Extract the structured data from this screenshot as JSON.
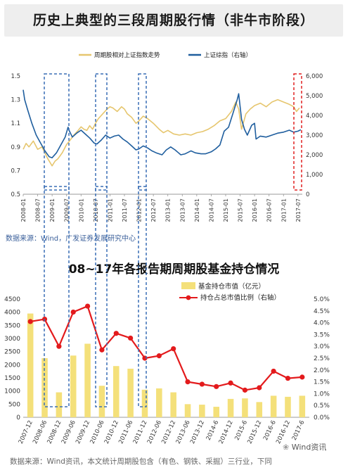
{
  "chart_data": [
    {
      "type": "line",
      "title": "历史上典型的三段周期股行情（非牛市阶段）",
      "source": "数据来源：Wind，广发证券发展研究中心",
      "x_ticks": [
        "2008-01",
        "2008-07",
        "2009-01",
        "2009-07",
        "2010-01",
        "2010-07",
        "2011-01",
        "2011-07",
        "2012-01",
        "2012-07",
        "2013-01",
        "2013-07",
        "2014-01",
        "2014-07",
        "2015-01",
        "2015-07",
        "2016-01",
        "2016-07",
        "2017-01",
        "2017-07"
      ],
      "y_left_ticks": [
        "1.5",
        "1.3",
        "1.1",
        "0.9",
        "0.7",
        "0.5"
      ],
      "y_right_ticks": [
        "6,000",
        "5,000",
        "4,000",
        "3,000",
        "2,000",
        "1,000",
        "0"
      ],
      "ylim_left": [
        0.5,
        1.5
      ],
      "ylim_right": [
        0,
        6000
      ],
      "legend_position": "top",
      "series": [
        {
          "name": "周期股相对上证指数走势",
          "color": "#e6c66e",
          "axis": "left",
          "points": [
            [
              2008.0,
              0.88
            ],
            [
              2008.1,
              0.93
            ],
            [
              2008.2,
              0.9
            ],
            [
              2008.35,
              0.95
            ],
            [
              2008.5,
              0.88
            ],
            [
              2008.65,
              0.9
            ],
            [
              2008.85,
              0.8
            ],
            [
              2009.0,
              0.74
            ],
            [
              2009.1,
              0.78
            ],
            [
              2009.2,
              0.8
            ],
            [
              2009.35,
              0.85
            ],
            [
              2009.5,
              0.92
            ],
            [
              2009.6,
              0.95
            ],
            [
              2009.75,
              1.0
            ],
            [
              2009.9,
              1.04
            ],
            [
              2010.0,
              1.07
            ],
            [
              2010.1,
              1.05
            ],
            [
              2010.2,
              1.04
            ],
            [
              2010.3,
              1.08
            ],
            [
              2010.4,
              1.05
            ],
            [
              2010.5,
              1.1
            ],
            [
              2010.6,
              1.14
            ],
            [
              2010.75,
              1.18
            ],
            [
              2010.9,
              1.22
            ],
            [
              2011.0,
              1.24
            ],
            [
              2011.1,
              1.23
            ],
            [
              2011.25,
              1.2
            ],
            [
              2011.4,
              1.24
            ],
            [
              2011.5,
              1.22
            ],
            [
              2011.6,
              1.18
            ],
            [
              2011.75,
              1.15
            ],
            [
              2011.9,
              1.1
            ],
            [
              2012.0,
              1.12
            ],
            [
              2012.15,
              1.16
            ],
            [
              2012.3,
              1.14
            ],
            [
              2012.5,
              1.1
            ],
            [
              2012.7,
              1.05
            ],
            [
              2012.85,
              1.02
            ],
            [
              2013.0,
              1.04
            ],
            [
              2013.2,
              1.01
            ],
            [
              2013.4,
              1.0
            ],
            [
              2013.6,
              1.01
            ],
            [
              2013.8,
              1.0
            ],
            [
              2014.0,
              1.02
            ],
            [
              2014.2,
              1.03
            ],
            [
              2014.4,
              1.05
            ],
            [
              2014.6,
              1.08
            ],
            [
              2014.8,
              1.12
            ],
            [
              2015.0,
              1.14
            ],
            [
              2015.2,
              1.2
            ],
            [
              2015.35,
              1.28
            ],
            [
              2015.45,
              1.22
            ],
            [
              2015.55,
              1.05
            ],
            [
              2015.7,
              1.18
            ],
            [
              2015.85,
              1.22
            ],
            [
              2016.0,
              1.25
            ],
            [
              2016.2,
              1.27
            ],
            [
              2016.4,
              1.24
            ],
            [
              2016.6,
              1.28
            ],
            [
              2016.8,
              1.3
            ],
            [
              2017.0,
              1.28
            ],
            [
              2017.2,
              1.26
            ],
            [
              2017.35,
              1.24
            ],
            [
              2017.45,
              1.2
            ],
            [
              2017.55,
              1.23
            ]
          ]
        },
        {
          "name": "上证综指（右轴）",
          "color": "#1f5e9e",
          "axis": "right",
          "points": [
            [
              2008.0,
              5300
            ],
            [
              2008.05,
              4800
            ],
            [
              2008.15,
              4300
            ],
            [
              2008.3,
              3600
            ],
            [
              2008.45,
              3000
            ],
            [
              2008.6,
              2600
            ],
            [
              2008.75,
              2200
            ],
            [
              2008.9,
              1900
            ],
            [
              2009.0,
              1850
            ],
            [
              2009.15,
              2100
            ],
            [
              2009.3,
              2500
            ],
            [
              2009.45,
              2900
            ],
            [
              2009.55,
              3400
            ],
            [
              2009.6,
              3200
            ],
            [
              2009.7,
              2900
            ],
            [
              2009.85,
              3100
            ],
            [
              2010.0,
              3250
            ],
            [
              2010.15,
              3050
            ],
            [
              2010.3,
              2850
            ],
            [
              2010.45,
              2600
            ],
            [
              2010.55,
              2550
            ],
            [
              2010.7,
              2750
            ],
            [
              2010.85,
              3000
            ],
            [
              2011.0,
              2850
            ],
            [
              2011.15,
              2950
            ],
            [
              2011.3,
              3000
            ],
            [
              2011.45,
              2800
            ],
            [
              2011.6,
              2650
            ],
            [
              2011.75,
              2450
            ],
            [
              2011.9,
              2250
            ],
            [
              2012.0,
              2300
            ],
            [
              2012.15,
              2450
            ],
            [
              2012.3,
              2350
            ],
            [
              2012.45,
              2200
            ],
            [
              2012.6,
              2100
            ],
            [
              2012.8,
              2000
            ],
            [
              2012.95,
              2250
            ],
            [
              2013.1,
              2400
            ],
            [
              2013.25,
              2250
            ],
            [
              2013.45,
              2000
            ],
            [
              2013.6,
              2050
            ],
            [
              2013.8,
              2200
            ],
            [
              2013.95,
              2100
            ],
            [
              2014.15,
              2050
            ],
            [
              2014.3,
              2050
            ],
            [
              2014.5,
              2150
            ],
            [
              2014.65,
              2300
            ],
            [
              2014.8,
              2500
            ],
            [
              2014.95,
              3200
            ],
            [
              2015.1,
              3400
            ],
            [
              2015.25,
              4100
            ],
            [
              2015.4,
              4800
            ],
            [
              2015.45,
              5100
            ],
            [
              2015.55,
              3800
            ],
            [
              2015.65,
              3300
            ],
            [
              2015.75,
              3000
            ],
            [
              2015.9,
              3500
            ],
            [
              2016.0,
              3600
            ],
            [
              2016.05,
              2800
            ],
            [
              2016.2,
              2950
            ],
            [
              2016.4,
              2900
            ],
            [
              2016.6,
              3000
            ],
            [
              2016.8,
              3100
            ],
            [
              2017.0,
              3150
            ],
            [
              2017.2,
              3250
            ],
            [
              2017.35,
              3150
            ],
            [
              2017.5,
              3200
            ],
            [
              2017.6,
              3270
            ]
          ]
        }
      ]
    },
    {
      "type": "bar",
      "title": "08~17年各报告期周期股基金持仓情况",
      "source": "数据来源：Wind资讯，本文统计周期股包含（有色、钢铁、采掘）三行业，下同",
      "categories": [
        "2007-12",
        "2008-06",
        "2008-12",
        "2009-06",
        "2009-12",
        "2010-06",
        "2010-12",
        "2011-06",
        "2011-12",
        "2012-06",
        "2012-12",
        "2013-06",
        "2013-12",
        "2014-6",
        "2014-12",
        "2015-6",
        "2015-12",
        "2016-6",
        "2016-12",
        "2017-6"
      ],
      "y_left_ticks": [
        "4500",
        "4000",
        "3500",
        "3000",
        "2500",
        "2000",
        "1500",
        "1000",
        "500",
        "0"
      ],
      "y_right_ticks": [
        "5.0%",
        "4.5%",
        "4.0%",
        "3.5%",
        "3.0%",
        "2.5%",
        "2.0%",
        "1.5%",
        "1.0%",
        "0.5%",
        "0.0%"
      ],
      "ylim_left": [
        0,
        4500
      ],
      "ylim_right": [
        0,
        5.0
      ],
      "legend_position": "top-right",
      "series": [
        {
          "name": "基金持仓市值（亿元）",
          "type": "bar",
          "color": "#f4e07a",
          "values": [
            3950,
            2250,
            950,
            2350,
            2800,
            1200,
            1950,
            1850,
            1050,
            1100,
            950,
            500,
            480,
            400,
            700,
            720,
            580,
            820,
            780,
            820
          ]
        },
        {
          "name": "持仓占总市值比例（右轴）",
          "type": "line",
          "color": "#e31a1c",
          "values": [
            4.05,
            4.15,
            3.0,
            4.45,
            4.7,
            2.85,
            3.55,
            3.35,
            2.5,
            2.6,
            2.9,
            1.5,
            1.4,
            1.3,
            1.45,
            1.15,
            1.25,
            1.95,
            1.65,
            1.7
          ]
        }
      ]
    }
  ],
  "watermark": "Wind资讯"
}
